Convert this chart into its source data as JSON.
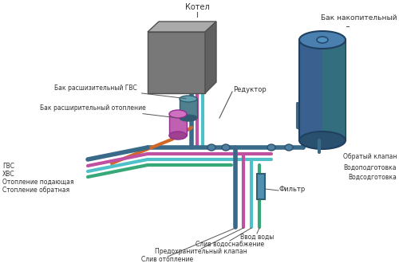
{
  "labels": {
    "kotel": "Котел",
    "reduktor": "Редуктор",
    "bak_nakopitelny": "Бак накопительный",
    "bak_gvs": "Бак расшизительный ГВС",
    "bak_otoplenie": "Бак расширительный отопление",
    "obratny_klapan": "Обратый клапан",
    "vodopodgotovka": "Водоподготовка",
    "vodsodgotovka": "Водсодготовка",
    "filtr": "Фильтр",
    "gvs": "ГВС",
    "hvs": "ХВС",
    "otoplenie_podayushchaya": "Отопление подающая",
    "otoplenie_obratnaya": "Стопление обратная",
    "vvod_vody": "Ввод воды",
    "sliv_vodosnabzhenie": "Слив водоснабжение",
    "predokhranitelny_klapan": "Предохранительный клапан",
    "sliv_otoplenie": "Слив отопление"
  },
  "colors": {
    "white": "#ffffff",
    "pipe_blue": "#4a7fa5",
    "pipe_dark_blue": "#3a6a8a",
    "pipe_cyan": "#50c0c8",
    "pipe_magenta": "#c050a0",
    "pipe_orange": "#d06828",
    "pipe_teal": "#38a878",
    "text": "#303030"
  }
}
